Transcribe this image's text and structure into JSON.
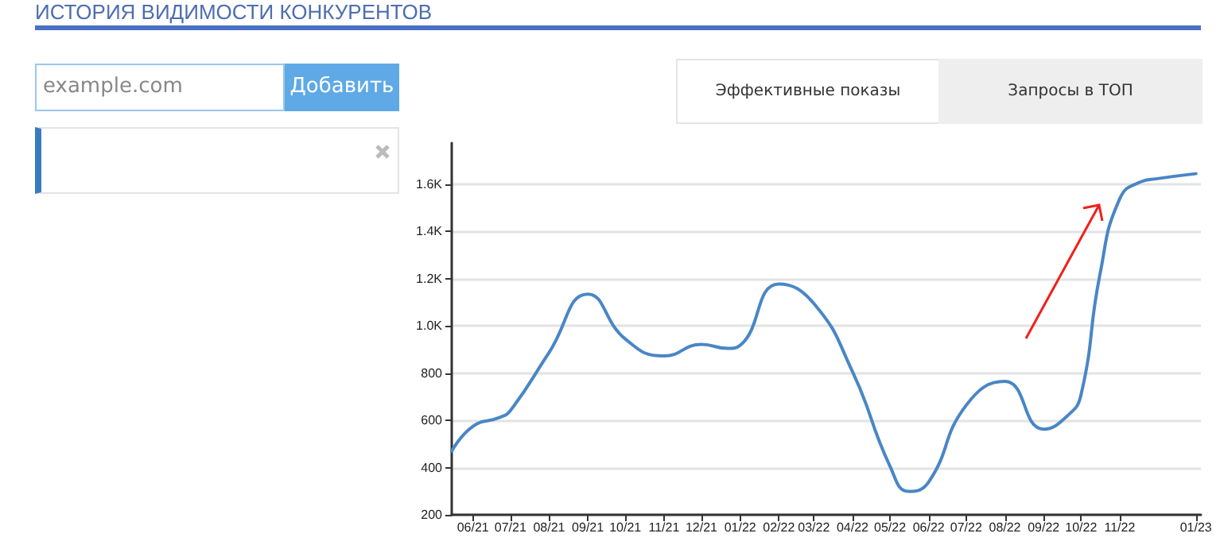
{
  "chart_data": {
    "type": "line",
    "title": "ИСТОРИЯ ВИДИМОСТИ КОНКУРЕНТОВ",
    "annotations": [
      "example.com",
      "Добавить",
      "Эффективные показы",
      "Запросы в ТОП"
    ],
    "x": [
      "2021-05-15",
      "2021-06-01",
      "2021-06-22",
      "2021-07-01",
      "2021-08-01",
      "2021-09-01",
      "2021-10-01",
      "2021-11-01",
      "2021-12-01",
      "2021-12-22",
      "2022-01-01",
      "2022-02-01",
      "2022-03-01",
      "2022-04-01",
      "2022-05-01",
      "2022-05-16",
      "2022-06-01",
      "2022-07-01",
      "2022-08-01",
      "2022-09-01",
      "2022-09-20",
      "2022-10-01",
      "2022-10-16",
      "2022-11-01",
      "2022-11-18",
      "2022-12-01",
      "2023-01-01"
    ],
    "series": [
      {
        "color": "#4a86c5",
        "values": [
          470,
          575,
          612,
          642,
          888,
          1135,
          945,
          873,
          922,
          905,
          918,
          1178,
          1095,
          806,
          406,
          299,
          339,
          664,
          765,
          563,
          619,
          709,
          1214,
          1539,
          1611,
          1624,
          1645
        ]
      }
    ],
    "xlim": [
      "2021-05-15",
      "2023-01-05"
    ],
    "xticks": [
      {
        "value": "2021-06-01",
        "label": "06/21"
      },
      {
        "value": "2021-07-01",
        "label": "07/21"
      },
      {
        "value": "2021-08-01",
        "label": "08/21"
      },
      {
        "value": "2021-09-01",
        "label": "09/21"
      },
      {
        "value": "2021-10-01",
        "label": "10/21"
      },
      {
        "value": "2021-11-01",
        "label": "11/21"
      },
      {
        "value": "2021-12-01",
        "label": "12/21"
      },
      {
        "value": "2022-01-01",
        "label": "01/22"
      },
      {
        "value": "2022-02-01",
        "label": "02/22"
      },
      {
        "value": "2022-03-01",
        "label": "03/22"
      },
      {
        "value": "2022-04-01",
        "label": "04/22"
      },
      {
        "value": "2022-05-01",
        "label": "05/22"
      },
      {
        "value": "2022-06-01",
        "label": "06/22"
      },
      {
        "value": "2022-07-01",
        "label": "07/22"
      },
      {
        "value": "2022-08-01",
        "label": "08/22"
      },
      {
        "value": "2022-09-01",
        "label": "09/22"
      },
      {
        "value": "2022-10-01",
        "label": "10/22"
      },
      {
        "value": "2022-11-01",
        "label": "11/22"
      },
      {
        "value": "2023-01-01",
        "label": "01/23"
      }
    ],
    "ylim": [
      200,
      1775
    ],
    "yticks": [
      200,
      400,
      600,
      800,
      {
        "value": 1000,
        "label": "1.0K"
      },
      {
        "value": 1200,
        "label": "1.2K"
      },
      {
        "value": 1400,
        "label": "1.4K"
      },
      {
        "value": 1600,
        "label": "1.6K"
      }
    ],
    "grid": "y",
    "marker": "none",
    "line_style": "solid"
  }
}
